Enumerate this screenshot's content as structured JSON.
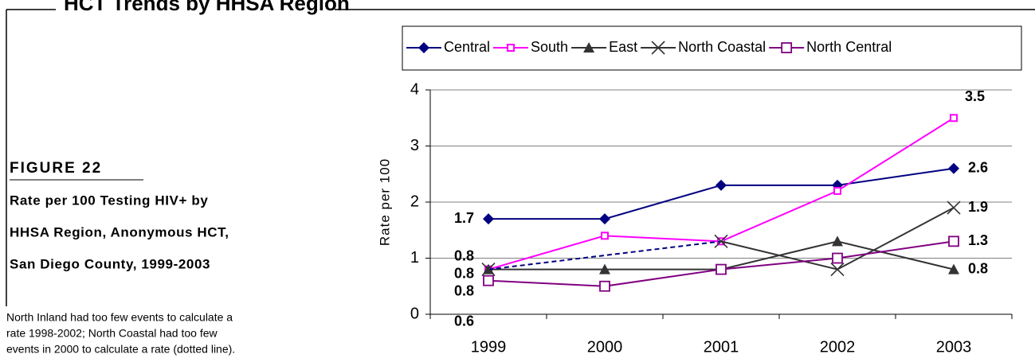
{
  "header": {
    "title": "HCT Trends by HHSA Region"
  },
  "figure": {
    "label": "FIGURE 22",
    "caption": [
      "Rate per 100 Testing HIV+ by",
      "HHSA Region, Anonymous HCT,",
      "San Diego County, 1999-2003"
    ],
    "note": [
      "North Inland had too few events to calculate a",
      "rate 1998-2002; North Coastal had too few",
      "events in 2000 to calculate a rate (dotted line)."
    ]
  },
  "chart_data": {
    "type": "line",
    "y_label": "Rate per 100",
    "categories": [
      "1999",
      "2000",
      "2001",
      "2002",
      "2003"
    ],
    "series": [
      {
        "name": "Central",
        "color": "#000080",
        "marker": "diamond",
        "values": [
          1.7,
          1.7,
          2.3,
          2.3,
          2.6
        ]
      },
      {
        "name": "South",
        "color": "#ff00ff",
        "marker": "square",
        "values": [
          0.8,
          1.4,
          1.3,
          2.2,
          3.5
        ]
      },
      {
        "name": "East",
        "color": "#333333",
        "marker": "triangle",
        "values": [
          0.8,
          0.8,
          0.8,
          1.3,
          0.8
        ]
      },
      {
        "name": "North Coastal",
        "color": "#333333",
        "marker": "x",
        "values": [
          0.8,
          null,
          1.3,
          0.8,
          1.9
        ]
      },
      {
        "name": "North Central",
        "color": "#800080",
        "marker": "open-square",
        "values": [
          0.6,
          0.5,
          0.8,
          1.0,
          1.3
        ]
      }
    ],
    "ylim": [
      0,
      4
    ],
    "yticks": [
      0,
      1,
      2,
      3,
      4
    ],
    "grid": true,
    "legend": "top"
  }
}
